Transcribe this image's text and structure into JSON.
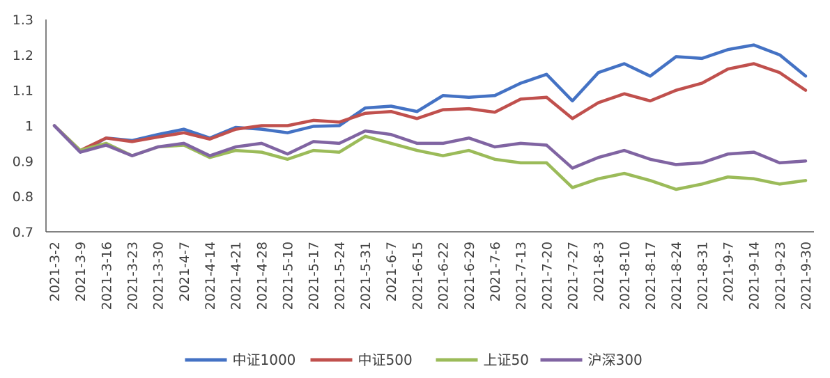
{
  "chart_data": {
    "type": "line",
    "title": "",
    "xlabel": "",
    "ylabel": "",
    "ylim": [
      0.7,
      1.3
    ],
    "yticks": [
      "0.7",
      "0.8",
      "0.9",
      "1",
      "1.1",
      "1.2",
      "1.3"
    ],
    "grid": false,
    "legend_position": "bottom",
    "categories": [
      "2021-3-2",
      "2021-3-9",
      "2021-3-16",
      "2021-3-23",
      "2021-3-30",
      "2021-4-7",
      "2021-4-14",
      "2021-4-21",
      "2021-4-28",
      "2021-5-10",
      "2021-5-17",
      "2021-5-24",
      "2021-5-31",
      "2021-6-7",
      "2021-6-15",
      "2021-6-22",
      "2021-6-29",
      "2021-7-6",
      "2021-7-13",
      "2021-7-20",
      "2021-7-27",
      "2021-8-3",
      "2021-8-10",
      "2021-8-17",
      "2021-8-24",
      "2021-8-31",
      "2021-9-7",
      "2021-9-14",
      "2021-9-23",
      "2021-9-30"
    ],
    "series": [
      {
        "name": "中证1000",
        "color": "#4472C4",
        "values": [
          1.0,
          0.925,
          0.965,
          0.958,
          0.975,
          0.99,
          0.965,
          0.995,
          0.99,
          0.98,
          0.998,
          1.0,
          1.05,
          1.055,
          1.04,
          1.085,
          1.08,
          1.085,
          1.12,
          1.145,
          1.07,
          1.15,
          1.175,
          1.14,
          1.195,
          1.19,
          1.215,
          1.228,
          1.2,
          1.14
        ]
      },
      {
        "name": "中证500",
        "color": "#C0504D",
        "values": [
          1.0,
          0.93,
          0.965,
          0.955,
          0.968,
          0.98,
          0.962,
          0.99,
          1.0,
          1.0,
          1.015,
          1.01,
          1.035,
          1.04,
          1.02,
          1.045,
          1.048,
          1.038,
          1.075,
          1.08,
          1.02,
          1.065,
          1.09,
          1.07,
          1.1,
          1.12,
          1.16,
          1.175,
          1.15,
          1.1
        ]
      },
      {
        "name": "上证50",
        "color": "#9BBB59",
        "values": [
          1.0,
          0.93,
          0.95,
          0.915,
          0.94,
          0.945,
          0.91,
          0.93,
          0.925,
          0.905,
          0.93,
          0.925,
          0.97,
          0.95,
          0.93,
          0.915,
          0.93,
          0.905,
          0.895,
          0.895,
          0.825,
          0.85,
          0.865,
          0.845,
          0.82,
          0.835,
          0.855,
          0.85,
          0.835,
          0.845
        ]
      },
      {
        "name": "沪深300",
        "color": "#8064A2",
        "values": [
          1.0,
          0.925,
          0.945,
          0.915,
          0.94,
          0.95,
          0.915,
          0.94,
          0.95,
          0.92,
          0.955,
          0.95,
          0.985,
          0.975,
          0.95,
          0.95,
          0.965,
          0.94,
          0.95,
          0.945,
          0.88,
          0.91,
          0.93,
          0.905,
          0.89,
          0.895,
          0.92,
          0.925,
          0.895,
          0.9
        ]
      }
    ]
  }
}
